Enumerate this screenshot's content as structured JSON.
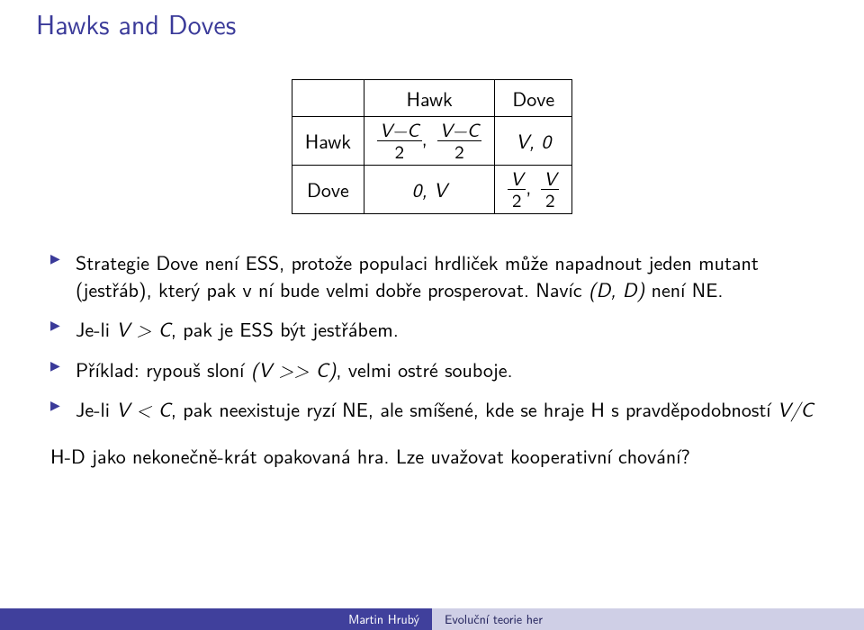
{
  "colors": {
    "title": "#3a3a99",
    "bullet": "#3a3a99",
    "footer_left_bg": "#40409c",
    "footer_left_fg": "#ffffff",
    "footer_right_bg": "#cfcfe6",
    "footer_right_fg": "#20205a",
    "text": "#000000",
    "background": "#ffffff",
    "rule": "#000000"
  },
  "typography": {
    "title_fontsize": 30,
    "body_fontsize": 22,
    "footer_fontsize": 14,
    "font_family": "Latin Modern Sans"
  },
  "title": "Hawks and Doves",
  "payoff_table": {
    "col_headers": [
      "Hawk",
      "Dove"
    ],
    "row_headers": [
      "Hawk",
      "Dove"
    ],
    "cells": {
      "hh_num": "V−C",
      "hh_den": "2",
      "hd": "V, 0",
      "dh": "0, V",
      "dd_num": "V",
      "dd_den": "2"
    }
  },
  "bullets": {
    "b1_a": "Strategie Dove není ESS, protože populaci hrdliček může napadnout jeden mutant (jestřáb), který pak v ní bude velmi dobře prosperovat. Navíc ",
    "b1_b_math_left": "(D, D)",
    "b1_c": " není NE.",
    "b2_a": "Je-li ",
    "b2_b_math": "V > C",
    "b2_c": ", pak je ESS být jestřábem.",
    "b3_a": "Příklad: rypouš sloní ",
    "b3_b_math": "(V >> C)",
    "b3_c": ", velmi ostré souboje.",
    "b4_a": "Je-li ",
    "b4_b_math": "V < C",
    "b4_c": ", pak neexistuje ryzí NE, ale smíšené, kde se hraje H s pravděpodobností ",
    "b4_d_math": "V/C"
  },
  "summary": "H-D jako nekonečně-krát opakovaná hra. Lze uvažovat kooperativní chování?",
  "footer": {
    "author": "Martin Hrubý",
    "course": "Evoluční teorie her"
  }
}
